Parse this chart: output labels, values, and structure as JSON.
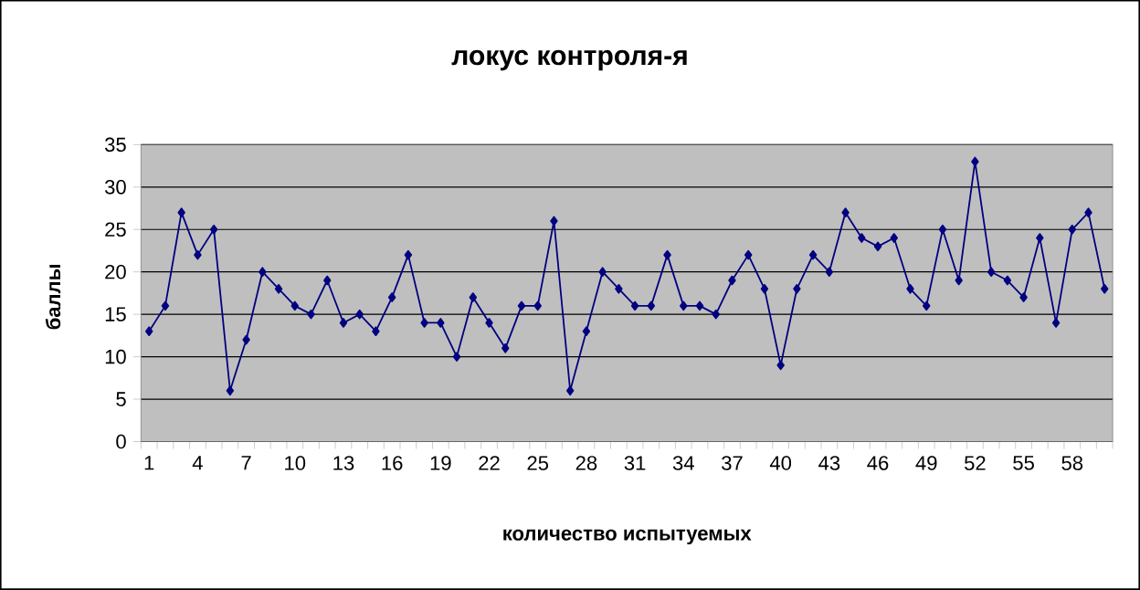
{
  "chart_data": {
    "type": "line",
    "title": "локус контроля-я",
    "xlabel": "количество испытуемых",
    "ylabel": "баллы",
    "categories": [
      "1",
      null,
      null,
      "4",
      null,
      null,
      "7",
      null,
      null,
      "10",
      null,
      null,
      "13",
      null,
      null,
      "16",
      null,
      null,
      "19",
      null,
      null,
      "22",
      null,
      null,
      "25",
      null,
      null,
      "28",
      null,
      null,
      "31",
      null,
      null,
      "34",
      null,
      null,
      "37",
      null,
      null,
      "40",
      null,
      null,
      "43",
      null,
      null,
      "46",
      null,
      null,
      "49",
      null,
      null,
      "52",
      null,
      null,
      "55",
      null,
      null,
      "58",
      null,
      null
    ],
    "values": [
      13,
      16,
      27,
      22,
      25,
      6,
      12,
      20,
      18,
      16,
      15,
      19,
      14,
      15,
      13,
      17,
      22,
      14,
      14,
      10,
      17,
      14,
      11,
      16,
      16,
      26,
      6,
      13,
      20,
      18,
      16,
      16,
      22,
      16,
      16,
      15,
      19,
      22,
      18,
      9,
      18,
      22,
      20,
      27,
      24,
      23,
      24,
      18,
      16,
      25,
      19,
      33,
      20,
      19,
      17,
      24,
      14,
      25,
      27,
      18
    ],
    "color": "#000080",
    "marker": "diamond",
    "line_style": "solid",
    "ylim": [
      0,
      35
    ],
    "yticks": [
      0,
      5,
      10,
      15,
      20,
      25,
      30,
      35
    ],
    "grid": "y"
  }
}
